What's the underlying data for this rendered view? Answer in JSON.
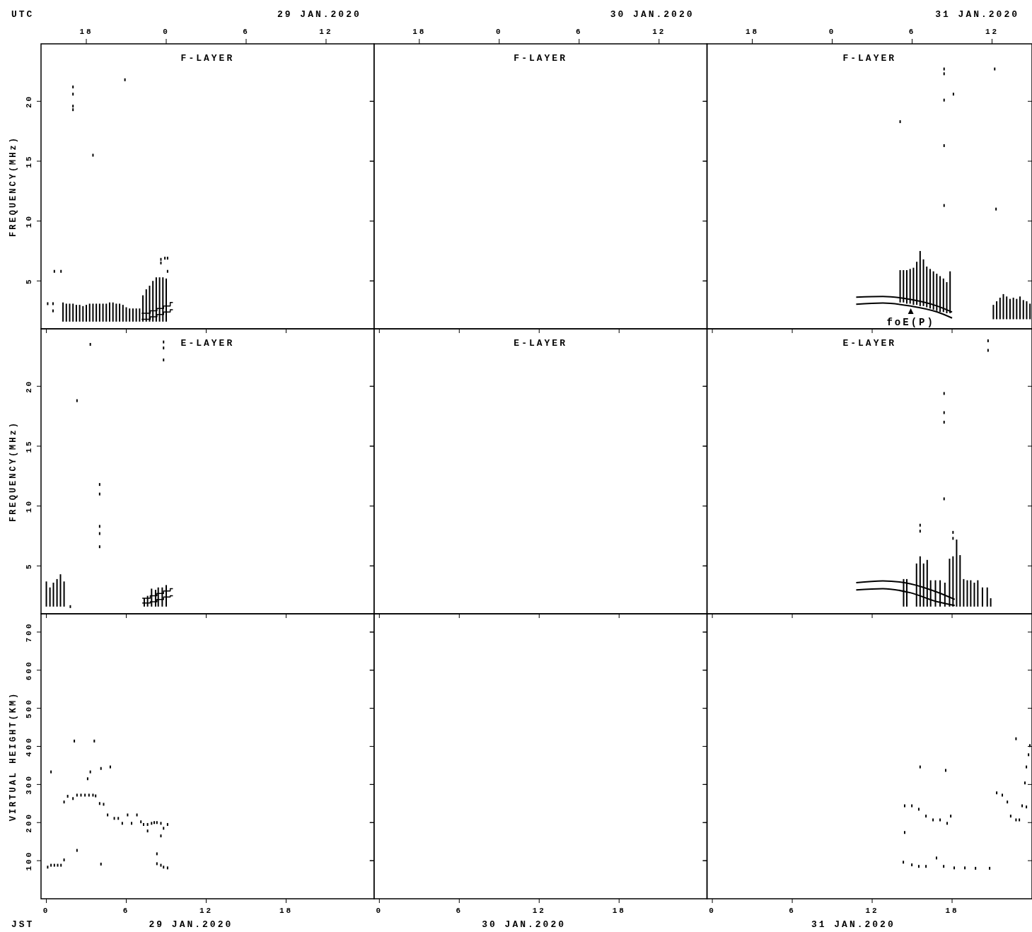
{
  "chart_data": [
    {
      "type": "bar",
      "title": "F-LAYER",
      "ylabel": "FREQUENCY(MHz)",
      "x2label": "29 JAN.2020",
      "annotations": [
        "UTC"
      ],
      "xlim": [
        -0.4,
        24.6
      ],
      "ylim": [
        1,
        24.8
      ],
      "xticks": [
        0,
        6,
        12,
        18
      ],
      "yticks": [
        5,
        10,
        15,
        20
      ],
      "x2lim": [
        "2020-01-28T14:36",
        "2020-01-29T15:36"
      ],
      "x2ticks": [
        {
          "value": "2020-01-28T18:00",
          "label": "18"
        },
        {
          "value": "2020-01-29T00:00",
          "label": "0"
        },
        {
          "value": "2020-01-29T06:00",
          "label": "6"
        },
        {
          "value": "2020-01-29T12:00",
          "label": "12"
        }
      ],
      "tick_labels": "y",
      "series": [
        {
          "color": "#000000",
          "x": [
            1.25,
            1.5,
            1.75,
            2.0,
            2.25,
            2.5,
            2.75,
            3.0,
            3.25,
            3.5,
            3.75,
            4.0,
            4.25,
            4.5,
            4.75,
            5.0,
            5.25,
            5.5,
            5.75,
            6.0,
            6.25,
            6.5,
            6.75,
            7.0,
            7.25,
            7.5,
            7.75,
            8.0,
            8.25,
            8.5,
            8.75,
            9.0
          ],
          "base": [
            1.6,
            1.6,
            1.6,
            1.6,
            1.6,
            1.6,
            1.6,
            1.6,
            1.6,
            1.6,
            1.6,
            1.6,
            1.6,
            1.6,
            1.6,
            1.6,
            1.6,
            1.6,
            1.6,
            1.6,
            1.6,
            1.6,
            1.6,
            1.6,
            1.6,
            1.6,
            1.6,
            1.6,
            1.6,
            1.6,
            1.6,
            1.6
          ],
          "values": [
            1.6,
            1.5,
            1.5,
            1.5,
            1.4,
            1.4,
            1.3,
            1.4,
            1.5,
            1.5,
            1.5,
            1.5,
            1.5,
            1.5,
            1.6,
            1.6,
            1.5,
            1.5,
            1.4,
            1.2,
            1.1,
            1.1,
            1.1,
            1.1,
            2.2,
            2.7,
            3.0,
            3.4,
            3.7,
            3.7,
            3.7,
            3.6
          ]
        },
        {
          "type": "step",
          "color": "#000000",
          "x": [
            7.15,
            7.8,
            8.3,
            8.8,
            9.3,
            9.5
          ],
          "values": [
            2.3,
            2.5,
            2.7,
            2.9,
            3.2,
            3.2
          ]
        },
        {
          "type": "step",
          "color": "#000000",
          "x": [
            7.15,
            7.8,
            8.3,
            8.8,
            9.3,
            9.5
          ],
          "values": [
            1.8,
            2.0,
            2.2,
            2.4,
            2.6,
            2.6
          ]
        },
        {
          "type": "scatter",
          "marker": "square",
          "color": "#000000",
          "x": [
            0.1,
            0.5,
            0.5,
            0.6,
            1.1,
            2.0,
            2.0,
            2.0,
            2.0,
            3.5,
            5.9,
            8.6,
            8.6,
            8.9,
            9.1,
            9.1
          ],
          "values": [
            3.1,
            3.1,
            2.5,
            5.8,
            5.8,
            21.2,
            20.6,
            19.6,
            19.3,
            15.5,
            21.8,
            6.8,
            6.5,
            6.9,
            6.9,
            5.8
          ]
        }
      ]
    },
    {
      "type": "bar",
      "title": "F-LAYER",
      "x2label": "30 JAN.2020",
      "xlim": [
        -0.4,
        24.6
      ],
      "ylim": [
        1,
        24.8
      ],
      "xticks": [
        0,
        6,
        12,
        18
      ],
      "yticks": [
        5,
        10,
        15,
        20
      ],
      "x2lim": [
        "2020-01-29T14:36",
        "2020-01-30T15:36"
      ],
      "x2ticks": [
        {
          "value": "2020-01-29T18:00",
          "label": "18"
        },
        {
          "value": "2020-01-30T00:00",
          "label": "0"
        },
        {
          "value": "2020-01-30T06:00",
          "label": "6"
        },
        {
          "value": "2020-01-30T12:00",
          "label": "12"
        }
      ],
      "tick_labels": false
    },
    {
      "type": "bar",
      "title": "F-LAYER",
      "x2label": "31 JAN.2020",
      "annotations": [
        {
          "text": "foE(P)",
          "x": 14.9,
          "y": 2.6
        }
      ],
      "xlim": [
        -0.4,
        24.0
      ],
      "ylim": [
        1,
        24.8
      ],
      "xticks": [
        0,
        6,
        12,
        18
      ],
      "yticks": [
        5,
        10,
        15,
        20
      ],
      "x2lim": [
        "2020-01-30T14:36",
        "2020-01-31T15:00"
      ],
      "x2ticks": [
        {
          "value": "2020-01-30T18:00",
          "label": "18"
        },
        {
          "value": "2020-01-31T00:00",
          "label": "0"
        },
        {
          "value": "2020-01-31T06:00",
          "label": "6"
        },
        {
          "value": "2020-01-31T12:00",
          "label": "12"
        }
      ],
      "tick_labels": false,
      "series": [
        {
          "color": "#000000",
          "x": [
            14.1,
            14.35,
            14.6,
            14.85,
            15.1,
            15.35,
            15.6,
            15.85,
            16.1,
            16.35,
            16.6,
            16.85,
            17.1,
            17.35,
            17.6,
            17.85,
            21.1,
            21.35,
            21.6,
            21.85,
            22.1,
            22.35,
            22.6,
            22.85,
            23.1,
            23.35,
            23.6,
            23.85
          ],
          "base": [
            3.2,
            3.2,
            3.1,
            3.1,
            3.0,
            3.0,
            2.9,
            2.9,
            2.8,
            2.7,
            2.6,
            2.5,
            2.4,
            2.4,
            2.3,
            2.3,
            1.8,
            1.8,
            1.8,
            1.8,
            1.8,
            1.8,
            1.8,
            1.8,
            1.8,
            1.8,
            1.8,
            1.8
          ],
          "values": [
            2.7,
            2.7,
            2.8,
            2.9,
            3.1,
            3.6,
            4.6,
            3.9,
            3.4,
            3.3,
            3.2,
            3.1,
            3.0,
            2.8,
            2.6,
            3.5,
            1.2,
            1.5,
            1.8,
            2.1,
            1.9,
            1.7,
            1.8,
            1.7,
            1.9,
            1.6,
            1.5,
            1.3
          ]
        },
        {
          "type": "line",
          "color": "#000000",
          "x": [
            10.8,
            12.8,
            14.9,
            16.9,
            18.0
          ],
          "values": [
            3.65,
            3.7,
            3.45,
            2.9,
            2.4
          ]
        },
        {
          "type": "line",
          "color": "#000000",
          "x": [
            10.8,
            12.8,
            14.9,
            16.9,
            18.0
          ],
          "values": [
            3.05,
            3.15,
            2.9,
            2.4,
            1.9
          ]
        },
        {
          "type": "scatter",
          "marker": "square",
          "color": "#000000",
          "x": [
            14.1,
            17.4,
            17.4,
            17.4,
            17.4,
            17.4,
            18.1,
            21.2,
            21.3
          ],
          "values": [
            18.3,
            22.7,
            22.3,
            20.1,
            16.3,
            11.3,
            20.6,
            22.7,
            11.0
          ]
        }
      ]
    },
    {
      "type": "bar",
      "title": "E-LAYER",
      "ylabel": "FREQUENCY(MHz)",
      "xlim": [
        -0.4,
        24.6
      ],
      "ylim": [
        1,
        24.8
      ],
      "xticks": [
        0,
        6,
        12,
        18
      ],
      "yticks": [
        5,
        10,
        15,
        20
      ],
      "tick_labels": "y",
      "series": [
        {
          "color": "#000000",
          "x": [
            0.0,
            0.27,
            0.53,
            0.8,
            1.06,
            1.33,
            7.35,
            7.6,
            7.9,
            8.2,
            8.4,
            8.7,
            9.0
          ],
          "base": [
            1.6,
            1.6,
            1.6,
            1.6,
            1.6,
            1.6,
            1.6,
            1.6,
            1.6,
            1.6,
            1.6,
            1.6,
            1.6
          ],
          "values": [
            2.1,
            1.6,
            2.0,
            2.3,
            2.7,
            2.1,
            0.7,
            0.9,
            1.5,
            1.4,
            1.6,
            1.6,
            1.8
          ]
        },
        {
          "type": "step",
          "color": "#000000",
          "x": [
            7.2,
            7.8,
            8.3,
            8.8,
            9.3,
            9.5
          ],
          "values": [
            2.3,
            2.5,
            2.7,
            2.9,
            3.1,
            3.1
          ]
        },
        {
          "type": "step",
          "color": "#000000",
          "x": [
            7.2,
            7.8,
            8.3,
            8.8,
            9.3,
            9.5
          ],
          "values": [
            1.9,
            2.0,
            2.2,
            2.4,
            2.5,
            2.5
          ]
        },
        {
          "type": "scatter",
          "marker": "square",
          "color": "#000000",
          "x": [
            1.8,
            3.3,
            2.3,
            4.0,
            4.0,
            4.0,
            4.0,
            4.0,
            8.8,
            8.8,
            8.8
          ],
          "values": [
            1.6,
            23.5,
            18.8,
            11.8,
            11.0,
            8.3,
            7.7,
            6.6,
            23.7,
            23.2,
            22.2
          ]
        }
      ]
    },
    {
      "type": "bar",
      "title": "E-LAYER",
      "xlim": [
        -0.4,
        24.6
      ],
      "ylim": [
        1,
        24.8
      ],
      "xticks": [
        0,
        6,
        12,
        18
      ],
      "yticks": [
        5,
        10,
        15,
        20
      ],
      "tick_labels": false
    },
    {
      "type": "bar",
      "title": "E-LAYER",
      "xlim": [
        -0.4,
        24.0
      ],
      "ylim": [
        1,
        24.8
      ],
      "xticks": [
        0,
        6,
        12,
        18
      ],
      "yticks": [
        5,
        10,
        15,
        20
      ],
      "tick_labels": false,
      "series": [
        {
          "color": "#000000",
          "x": [
            14.36,
            14.6,
            15.33,
            15.6,
            15.86,
            16.13,
            16.39,
            16.75,
            17.1,
            17.46,
            17.81,
            18.07,
            18.34,
            18.6,
            18.87,
            19.14,
            19.4,
            19.67,
            19.93,
            20.28,
            20.64,
            20.9
          ],
          "base": [
            1.6,
            1.6,
            1.6,
            1.6,
            1.6,
            1.6,
            1.6,
            1.6,
            1.6,
            1.6,
            1.6,
            1.6,
            1.6,
            1.6,
            1.6,
            1.6,
            1.6,
            1.6,
            1.6,
            1.6,
            1.6,
            1.6
          ],
          "values": [
            2.3,
            2.3,
            3.6,
            4.2,
            3.6,
            3.9,
            2.2,
            2.2,
            2.2,
            2.0,
            4.0,
            4.2,
            5.6,
            4.3,
            2.3,
            2.2,
            2.2,
            2.0,
            2.2,
            1.6,
            1.6,
            0.7
          ]
        },
        {
          "type": "line",
          "color": "#000000",
          "x": [
            10.8,
            12.8,
            14.9,
            16.9,
            18.2
          ],
          "values": [
            3.6,
            3.75,
            3.5,
            2.8,
            2.2
          ]
        },
        {
          "type": "line",
          "color": "#000000",
          "x": [
            10.8,
            12.8,
            14.9,
            16.9,
            18.2
          ],
          "values": [
            3.0,
            3.1,
            2.75,
            2.0,
            1.7
          ]
        },
        {
          "type": "scatter",
          "marker": "square",
          "color": "#000000",
          "x": [
            15.6,
            15.6,
            18.07,
            18.07,
            17.4,
            17.4,
            17.4,
            17.4,
            20.7,
            20.7
          ],
          "values": [
            8.4,
            7.9,
            7.8,
            7.3,
            19.4,
            17.8,
            17.0,
            10.6,
            23.8,
            23.0
          ]
        }
      ]
    },
    {
      "type": "scatter",
      "ylabel": "VIRTUAL HEIGHT(KM)",
      "xlabel": "29 JAN.2020",
      "annotations": [
        "JST"
      ],
      "xlim": [
        -0.4,
        24.6
      ],
      "ylim": [
        0,
        748
      ],
      "xticks": [
        0,
        6,
        12,
        18
      ],
      "yticks": [
        100,
        200,
        300,
        400,
        500,
        600,
        700
      ],
      "marker": "square",
      "series": [
        {
          "color": "#000000",
          "x": [
            0.1,
            0.35,
            0.6,
            0.85,
            1.1,
            1.33,
            1.33,
            1.6,
            2.0,
            2.3,
            2.6,
            2.9,
            3.2,
            3.5,
            3.7,
            4.0,
            4.3,
            4.6,
            5.1,
            5.4,
            5.7,
            6.1,
            6.4,
            6.8,
            7.1,
            7.3,
            7.6,
            7.9,
            8.1,
            8.3,
            8.6,
            8.8,
            9.1,
            8.3,
            8.6,
            8.8,
            9.1,
            0.35,
            2.1,
            3.6,
            3.3,
            3.1,
            4.1,
            4.8,
            2.3,
            4.1,
            8.3,
            7.6,
            8.6
          ],
          "values": [
            83,
            88,
            88,
            88,
            88,
            102,
            254,
            269,
            263,
            272,
            272,
            272,
            272,
            272,
            270,
            250,
            248,
            220,
            211,
            211,
            198,
            220,
            198,
            220,
            202,
            195,
            195,
            198,
            200,
            200,
            198,
            185,
            195,
            92,
            88,
            83,
            81,
            333,
            414,
            414,
            333,
            315,
            342,
            346,
            127,
            91,
            118,
            178,
            165
          ]
        }
      ]
    },
    {
      "type": "scatter",
      "xlabel": "30 JAN.2020",
      "xlim": [
        -0.4,
        24.6
      ],
      "ylim": [
        0,
        748
      ],
      "xticks": [
        0,
        6,
        12,
        18
      ],
      "yticks": [
        100,
        200,
        300,
        400,
        500,
        600,
        700
      ],
      "tick_labels": "x"
    },
    {
      "type": "scatter",
      "xlabel": "31 JAN.2020",
      "xlim": [
        -0.4,
        24.0
      ],
      "ylim": [
        0,
        748
      ],
      "xticks": [
        0,
        6,
        12,
        18
      ],
      "yticks": [
        100,
        200,
        300,
        400,
        500,
        600,
        700
      ],
      "tick_labels": "x",
      "marker": "square",
      "series": [
        {
          "color": "#000000",
          "x": [
            14.44,
            14.98,
            15.5,
            16.04,
            16.57,
            17.1,
            17.63,
            17.9,
            14.44,
            15.6,
            17.52,
            14.34,
            14.98,
            15.5,
            16.04,
            16.83,
            17.37,
            18.16,
            18.96,
            19.76,
            20.82,
            21.35,
            21.77,
            22.15,
            22.4,
            22.8,
            23.05,
            23.26,
            23.58,
            22.8,
            23.47,
            23.58,
            23.74,
            23.84
          ],
          "values": [
            244,
            244,
            235,
            217,
            207,
            207,
            198,
            217,
            174,
            346,
            337,
            96,
            89,
            85,
            85,
            107,
            85,
            81,
            81,
            80,
            80,
            278,
            272,
            254,
            217,
            207,
            207,
            244,
            241,
            420,
            304,
            346,
            378,
            402
          ]
        }
      ]
    }
  ]
}
